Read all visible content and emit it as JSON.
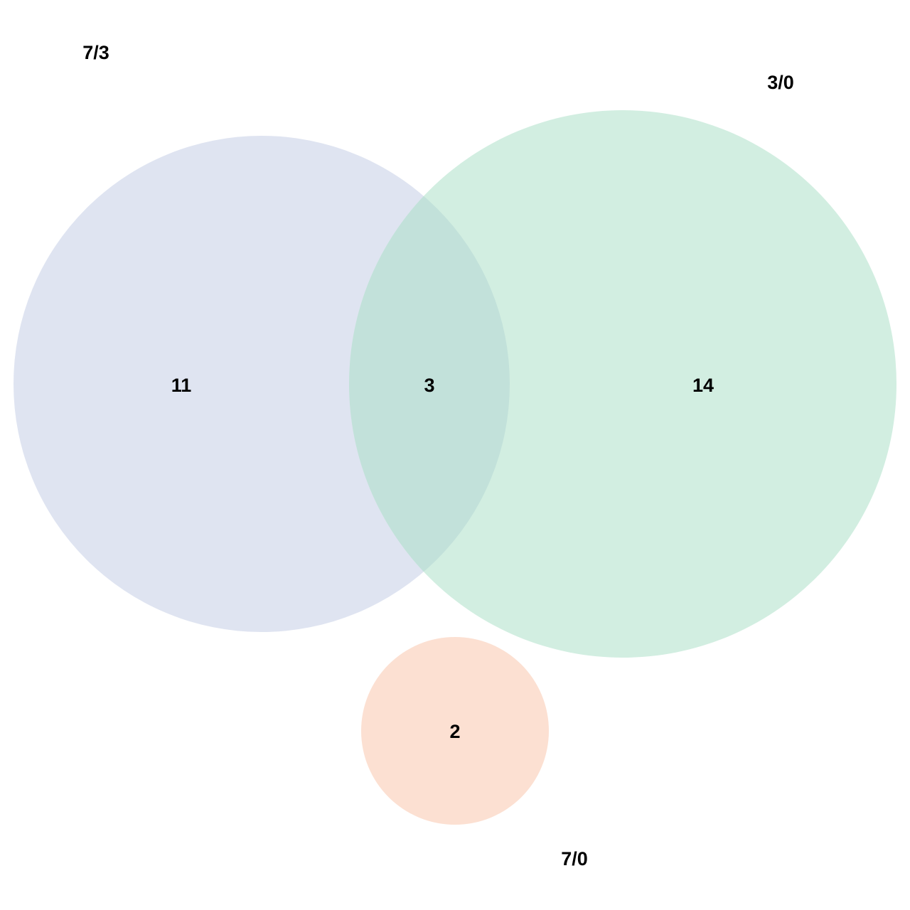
{
  "colors": {
    "set_a": "#dfe4f1",
    "set_b": "#d2eee1",
    "overlap_ab": "#c2e1da",
    "set_c": "#fce0d2",
    "text": "#000000"
  },
  "sets": [
    {
      "id": "a",
      "label": "7/3"
    },
    {
      "id": "b",
      "label": "3/0"
    },
    {
      "id": "c",
      "label": "7/0"
    }
  ],
  "regions": {
    "a_only": "11",
    "a_and_b": "3",
    "b_only": "14",
    "c_only": "2"
  }
}
